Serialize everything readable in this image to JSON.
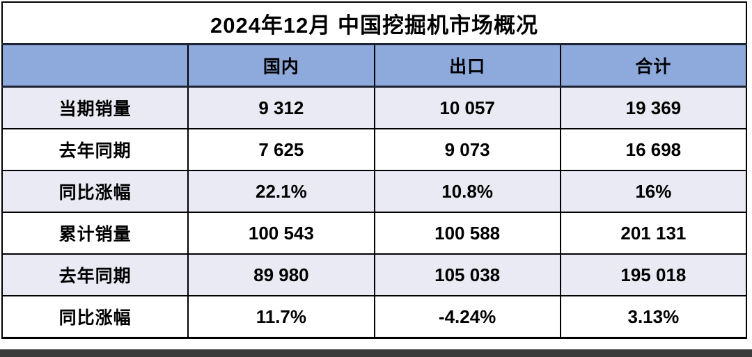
{
  "title": "2024年12月 中国挖掘机市场概况",
  "chart_data": {
    "type": "table",
    "title": "2024年12月 中国挖掘机市场概况",
    "columns": [
      "",
      "国内",
      "出口",
      "合计"
    ],
    "rows": [
      [
        "当期销量",
        "9 312",
        "10 057",
        "19 369"
      ],
      [
        "去年同期",
        "7 625",
        "9 073",
        "16 698"
      ],
      [
        "同比涨幅",
        "22.1%",
        "10.8%",
        "16%"
      ],
      [
        "累计销量",
        "100 543",
        "100 588",
        "201 131"
      ],
      [
        "去年同期",
        "89 980",
        "105 038",
        "195 018"
      ],
      [
        "同比涨幅",
        "11.7%",
        "-4.24%",
        "3.13%"
      ]
    ]
  },
  "colors": {
    "header_bg": "#8EA9DB",
    "row_alt_bg": "#E9EAF3",
    "row_bg": "#FFFFFF",
    "grid_border": "#000000",
    "title_divider": "#1D2534",
    "shadow_bar": "#3B3B3B",
    "text": "#000000"
  }
}
